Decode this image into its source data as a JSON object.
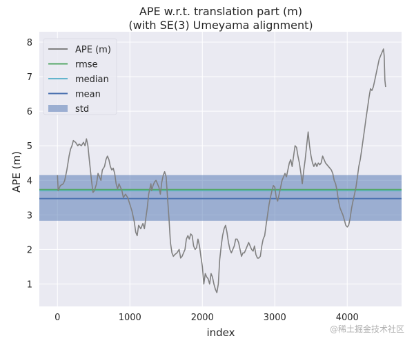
{
  "chart_data": {
    "type": "line",
    "title_line1": "APE w.r.t. translation part (m)",
    "title_line2": "(with SE(3) Umeyama alignment)",
    "xlabel": "index",
    "ylabel": "APE (m)",
    "xlim": [
      -250,
      4750
    ],
    "ylim": [
      0.35,
      8.3
    ],
    "xticks": [
      0,
      1000,
      2000,
      3000,
      4000
    ],
    "yticks": [
      1,
      2,
      3,
      4,
      5,
      6,
      7,
      8
    ],
    "grid": true,
    "legend_position": "top-left",
    "legend": [
      {
        "label": "APE (m)",
        "kind": "line",
        "color": "#808080"
      },
      {
        "label": "rmse",
        "kind": "line",
        "color": "#55a868"
      },
      {
        "label": "median",
        "kind": "line",
        "color": "#64b5cd"
      },
      {
        "label": "mean",
        "kind": "line",
        "color": "#4c72b0"
      },
      {
        "label": "std",
        "kind": "patch",
        "color": "#4c72b0"
      }
    ],
    "stats": {
      "rmse": 3.73,
      "median": 3.7,
      "mean": 3.47,
      "std_low": 2.83,
      "std_high": 4.15
    },
    "series": [
      {
        "name": "APE (m)",
        "color": "#808080",
        "points": [
          [
            0,
            4.15
          ],
          [
            10,
            3.7
          ],
          [
            40,
            3.85
          ],
          [
            80,
            3.9
          ],
          [
            100,
            4.0
          ],
          [
            130,
            4.3
          ],
          [
            160,
            4.7
          ],
          [
            180,
            4.9
          ],
          [
            200,
            5.0
          ],
          [
            220,
            5.15
          ],
          [
            250,
            5.1
          ],
          [
            280,
            5.0
          ],
          [
            300,
            5.05
          ],
          [
            330,
            5.0
          ],
          [
            360,
            5.1
          ],
          [
            380,
            5.0
          ],
          [
            400,
            5.2
          ],
          [
            420,
            5.0
          ],
          [
            440,
            4.6
          ],
          [
            470,
            4.0
          ],
          [
            490,
            3.65
          ],
          [
            510,
            3.7
          ],
          [
            540,
            3.9
          ],
          [
            560,
            4.2
          ],
          [
            580,
            4.1
          ],
          [
            600,
            4.0
          ],
          [
            620,
            4.3
          ],
          [
            650,
            4.4
          ],
          [
            670,
            4.6
          ],
          [
            690,
            4.7
          ],
          [
            710,
            4.6
          ],
          [
            730,
            4.4
          ],
          [
            750,
            4.3
          ],
          [
            770,
            4.35
          ],
          [
            790,
            4.2
          ],
          [
            810,
            3.9
          ],
          [
            830,
            3.75
          ],
          [
            850,
            3.9
          ],
          [
            870,
            3.8
          ],
          [
            890,
            3.7
          ],
          [
            910,
            3.5
          ],
          [
            940,
            3.6
          ],
          [
            970,
            3.5
          ],
          [
            1000,
            3.3
          ],
          [
            1030,
            3.1
          ],
          [
            1060,
            2.8
          ],
          [
            1080,
            2.5
          ],
          [
            1100,
            2.4
          ],
          [
            1120,
            2.7
          ],
          [
            1150,
            2.6
          ],
          [
            1180,
            2.75
          ],
          [
            1200,
            2.6
          ],
          [
            1220,
            2.9
          ],
          [
            1240,
            3.2
          ],
          [
            1260,
            3.6
          ],
          [
            1290,
            3.9
          ],
          [
            1300,
            3.7
          ],
          [
            1320,
            3.85
          ],
          [
            1340,
            3.95
          ],
          [
            1360,
            4.0
          ],
          [
            1380,
            3.9
          ],
          [
            1400,
            3.8
          ],
          [
            1420,
            3.6
          ],
          [
            1440,
            3.95
          ],
          [
            1460,
            4.15
          ],
          [
            1480,
            4.25
          ],
          [
            1500,
            4.1
          ],
          [
            1520,
            3.5
          ],
          [
            1540,
            2.9
          ],
          [
            1560,
            2.2
          ],
          [
            1580,
            1.9
          ],
          [
            1600,
            1.8
          ],
          [
            1620,
            1.85
          ],
          [
            1650,
            1.9
          ],
          [
            1680,
            2.0
          ],
          [
            1700,
            1.75
          ],
          [
            1720,
            1.8
          ],
          [
            1740,
            1.9
          ],
          [
            1760,
            2.0
          ],
          [
            1780,
            2.3
          ],
          [
            1800,
            2.4
          ],
          [
            1820,
            2.3
          ],
          [
            1840,
            2.45
          ],
          [
            1860,
            2.4
          ],
          [
            1880,
            2.1
          ],
          [
            1900,
            2.0
          ],
          [
            1920,
            2.05
          ],
          [
            1940,
            2.3
          ],
          [
            1960,
            2.1
          ],
          [
            1980,
            1.8
          ],
          [
            2000,
            1.5
          ],
          [
            2020,
            1.0
          ],
          [
            2040,
            1.3
          ],
          [
            2060,
            1.2
          ],
          [
            2080,
            1.15
          ],
          [
            2100,
            1.0
          ],
          [
            2120,
            1.3
          ],
          [
            2140,
            1.2
          ],
          [
            2160,
            1.0
          ],
          [
            2180,
            0.85
          ],
          [
            2200,
            0.75
          ],
          [
            2220,
            1.0
          ],
          [
            2240,
            1.7
          ],
          [
            2260,
            2.1
          ],
          [
            2280,
            2.4
          ],
          [
            2300,
            2.6
          ],
          [
            2320,
            2.7
          ],
          [
            2340,
            2.5
          ],
          [
            2360,
            2.2
          ],
          [
            2380,
            2.0
          ],
          [
            2400,
            1.9
          ],
          [
            2420,
            2.0
          ],
          [
            2440,
            2.1
          ],
          [
            2460,
            2.3
          ],
          [
            2480,
            2.3
          ],
          [
            2500,
            2.2
          ],
          [
            2520,
            2.0
          ],
          [
            2540,
            1.8
          ],
          [
            2560,
            1.9
          ],
          [
            2580,
            1.9
          ],
          [
            2600,
            2.0
          ],
          [
            2620,
            2.1
          ],
          [
            2640,
            2.2
          ],
          [
            2660,
            2.1
          ],
          [
            2680,
            2.0
          ],
          [
            2700,
            1.95
          ],
          [
            2720,
            2.1
          ],
          [
            2740,
            1.85
          ],
          [
            2760,
            1.75
          ],
          [
            2780,
            1.75
          ],
          [
            2800,
            1.8
          ],
          [
            2820,
            2.1
          ],
          [
            2840,
            2.3
          ],
          [
            2860,
            2.4
          ],
          [
            2880,
            2.7
          ],
          [
            2900,
            3.0
          ],
          [
            2920,
            3.3
          ],
          [
            2940,
            3.5
          ],
          [
            2960,
            3.7
          ],
          [
            2980,
            3.85
          ],
          [
            3000,
            3.8
          ],
          [
            3020,
            3.5
          ],
          [
            3040,
            3.4
          ],
          [
            3060,
            3.6
          ],
          [
            3080,
            3.8
          ],
          [
            3100,
            4.0
          ],
          [
            3120,
            4.1
          ],
          [
            3140,
            4.2
          ],
          [
            3160,
            4.1
          ],
          [
            3180,
            4.3
          ],
          [
            3200,
            4.5
          ],
          [
            3220,
            4.6
          ],
          [
            3240,
            4.4
          ],
          [
            3260,
            4.7
          ],
          [
            3280,
            5.0
          ],
          [
            3300,
            4.95
          ],
          [
            3320,
            4.7
          ],
          [
            3340,
            4.5
          ],
          [
            3360,
            4.2
          ],
          [
            3380,
            3.9
          ],
          [
            3400,
            4.3
          ],
          [
            3420,
            4.6
          ],
          [
            3440,
            5.0
          ],
          [
            3460,
            5.4
          ],
          [
            3480,
            5.0
          ],
          [
            3500,
            4.7
          ],
          [
            3520,
            4.5
          ],
          [
            3540,
            4.4
          ],
          [
            3560,
            4.5
          ],
          [
            3580,
            4.4
          ],
          [
            3600,
            4.5
          ],
          [
            3620,
            4.45
          ],
          [
            3640,
            4.5
          ],
          [
            3660,
            4.7
          ],
          [
            3680,
            4.6
          ],
          [
            3700,
            4.5
          ],
          [
            3720,
            4.45
          ],
          [
            3740,
            4.4
          ],
          [
            3760,
            4.35
          ],
          [
            3780,
            4.3
          ],
          [
            3800,
            4.2
          ],
          [
            3820,
            4.0
          ],
          [
            3840,
            3.9
          ],
          [
            3860,
            3.7
          ],
          [
            3880,
            3.4
          ],
          [
            3900,
            3.2
          ],
          [
            3920,
            3.1
          ],
          [
            3940,
            3.0
          ],
          [
            3960,
            2.85
          ],
          [
            3980,
            2.7
          ],
          [
            4000,
            2.65
          ],
          [
            4020,
            2.7
          ],
          [
            4040,
            2.9
          ],
          [
            4060,
            3.2
          ],
          [
            4080,
            3.4
          ],
          [
            4100,
            3.6
          ],
          [
            4120,
            3.8
          ],
          [
            4140,
            4.1
          ],
          [
            4160,
            4.4
          ],
          [
            4180,
            4.6
          ],
          [
            4200,
            4.9
          ],
          [
            4220,
            5.2
          ],
          [
            4240,
            5.5
          ],
          [
            4260,
            5.8
          ],
          [
            4280,
            6.1
          ],
          [
            4300,
            6.4
          ],
          [
            4320,
            6.65
          ],
          [
            4340,
            6.6
          ],
          [
            4360,
            6.7
          ],
          [
            4380,
            6.9
          ],
          [
            4400,
            7.1
          ],
          [
            4420,
            7.3
          ],
          [
            4440,
            7.5
          ],
          [
            4460,
            7.6
          ],
          [
            4480,
            7.7
          ],
          [
            4500,
            7.8
          ],
          [
            4510,
            7.6
          ],
          [
            4520,
            6.9
          ],
          [
            4530,
            6.7
          ]
        ]
      }
    ]
  },
  "watermark": "@稀土掘金技术社区"
}
